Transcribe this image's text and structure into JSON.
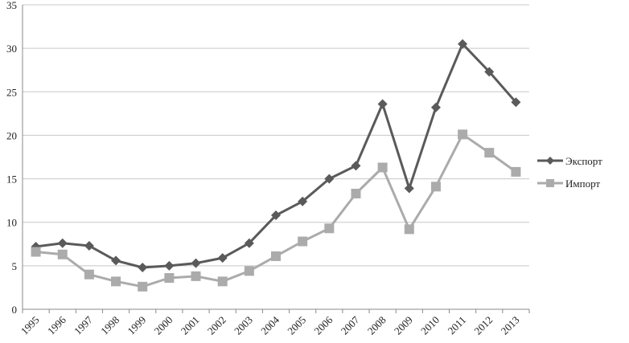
{
  "chart_data": {
    "type": "line",
    "title": "",
    "xlabel": "",
    "ylabel": "",
    "categories": [
      "1995",
      "1996",
      "1997",
      "1998",
      "1999",
      "2000",
      "2001",
      "2002",
      "2003",
      "2004",
      "2005",
      "2006",
      "2007",
      "2008",
      "2009",
      "2010",
      "2011",
      "2012",
      "2013"
    ],
    "ylim": [
      0,
      35
    ],
    "yticks": [
      0,
      5,
      10,
      15,
      20,
      25,
      30,
      35
    ],
    "grid": "horizontal",
    "legend_position": "right",
    "series": [
      {
        "name": "Экспорт",
        "color": "#5a5a5a",
        "marker": "diamond",
        "values": [
          7.2,
          7.6,
          7.3,
          5.6,
          4.8,
          5.0,
          5.3,
          5.9,
          7.6,
          10.8,
          12.4,
          15.0,
          16.5,
          23.6,
          13.9,
          23.2,
          30.5,
          27.3,
          23.8
        ]
      },
      {
        "name": "Импорт",
        "color": "#ababab",
        "marker": "square",
        "values": [
          6.6,
          6.3,
          4.0,
          3.2,
          2.6,
          3.6,
          3.8,
          3.2,
          4.4,
          6.1,
          7.8,
          9.3,
          13.3,
          16.3,
          9.2,
          14.1,
          20.1,
          18.0,
          15.8
        ]
      }
    ]
  }
}
